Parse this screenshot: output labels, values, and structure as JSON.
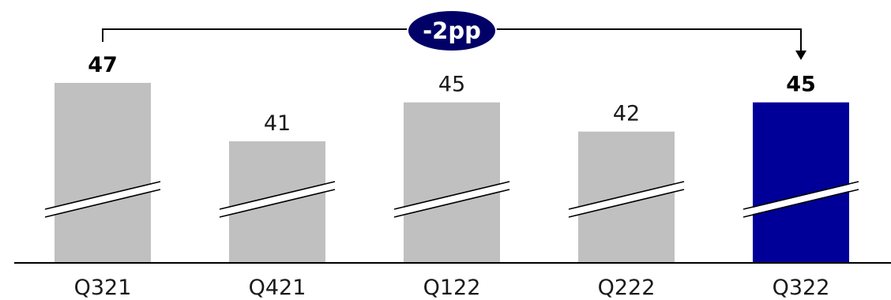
{
  "chart_data": {
    "type": "bar",
    "categories": [
      "Q321",
      "Q421",
      "Q122",
      "Q222",
      "Q322"
    ],
    "values": [
      47,
      41,
      45,
      42,
      45
    ],
    "value_labels": [
      "47",
      "41",
      "45",
      "42",
      "45"
    ],
    "bold_labels": [
      true,
      false,
      false,
      false,
      true
    ],
    "bar_colors": [
      "#c0c0c0",
      "#c0c0c0",
      "#c0c0c0",
      "#c0c0c0",
      "#000099"
    ],
    "axis_break": true,
    "annotation": {
      "text": "-2pp",
      "from_category": "Q321",
      "to_category": "Q322",
      "badge_color": "#000066"
    },
    "title": "",
    "xlabel": "",
    "ylabel": ""
  }
}
